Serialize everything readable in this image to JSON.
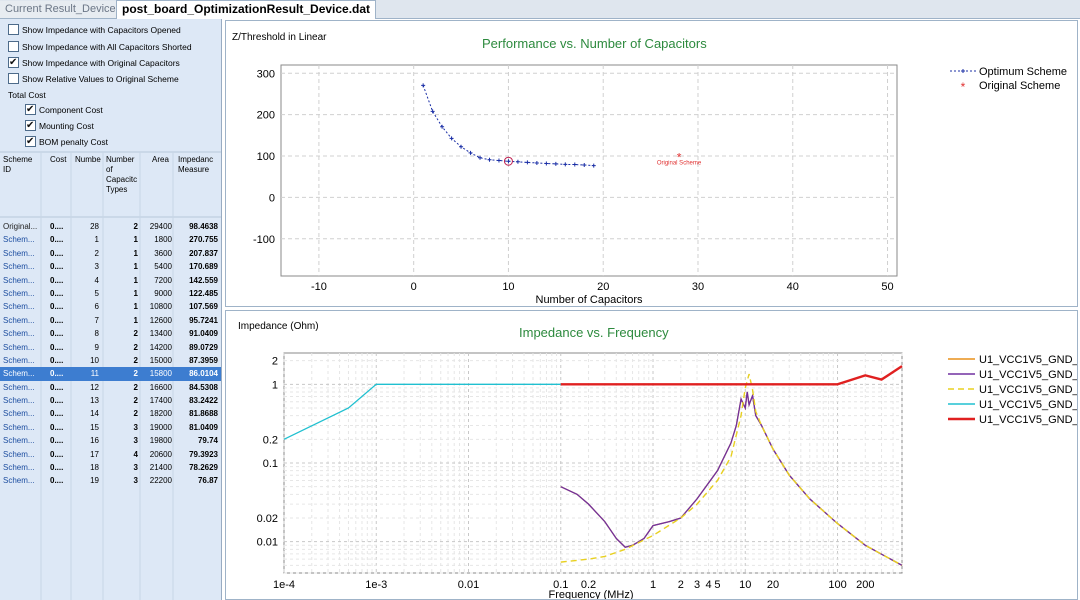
{
  "tabs": [
    {
      "label": "Current Result_Device",
      "active": false
    },
    {
      "label": "post_board_OptimizationResult_Device.dat",
      "active": true
    }
  ],
  "options": [
    {
      "label": "Show Impedance with Capacitors Opened",
      "checked": false
    },
    {
      "label": "Show Impedance with All Capacitors Shorted",
      "checked": false
    },
    {
      "label": "Show Impedance with Original Capacitors",
      "checked": true
    },
    {
      "label": "Show Relative Values to Original Scheme",
      "checked": false
    }
  ],
  "total_cost": {
    "label": "Total Cost",
    "items": [
      {
        "label": "Component Cost",
        "checked": true
      },
      {
        "label": "Mounting Cost",
        "checked": true
      },
      {
        "label": "BOM penalty Cost",
        "checked": true
      }
    ]
  },
  "table": {
    "headers": [
      "Scheme ID",
      "Cost",
      "Numbe",
      "Number of Capacitc Types",
      "Area",
      "Impedanc Measure"
    ],
    "selected_index": 11,
    "rows": [
      {
        "id": "Original...",
        "cost": "0....",
        "num": "28",
        "types": "2",
        "area": "29400",
        "imp": "98.4638"
      },
      {
        "id": "Schem...",
        "cost": "0....",
        "num": "1",
        "types": "1",
        "area": "1800",
        "imp": "270.755"
      },
      {
        "id": "Schem...",
        "cost": "0....",
        "num": "2",
        "types": "1",
        "area": "3600",
        "imp": "207.837"
      },
      {
        "id": "Schem...",
        "cost": "0....",
        "num": "3",
        "types": "1",
        "area": "5400",
        "imp": "170.689"
      },
      {
        "id": "Schem...",
        "cost": "0....",
        "num": "4",
        "types": "1",
        "area": "7200",
        "imp": "142.559"
      },
      {
        "id": "Schem...",
        "cost": "0....",
        "num": "5",
        "types": "1",
        "area": "9000",
        "imp": "122.485"
      },
      {
        "id": "Schem...",
        "cost": "0....",
        "num": "6",
        "types": "1",
        "area": "10800",
        "imp": "107.569"
      },
      {
        "id": "Schem...",
        "cost": "0....",
        "num": "7",
        "types": "1",
        "area": "12600",
        "imp": "95.7241"
      },
      {
        "id": "Schem...",
        "cost": "0....",
        "num": "8",
        "types": "2",
        "area": "13400",
        "imp": "91.0409"
      },
      {
        "id": "Schem...",
        "cost": "0....",
        "num": "9",
        "types": "2",
        "area": "14200",
        "imp": "89.0729"
      },
      {
        "id": "Schem...",
        "cost": "0....",
        "num": "10",
        "types": "2",
        "area": "15000",
        "imp": "87.3959"
      },
      {
        "id": "Schem...",
        "cost": "0....",
        "num": "11",
        "types": "2",
        "area": "15800",
        "imp": "86.0104"
      },
      {
        "id": "Schem...",
        "cost": "0....",
        "num": "12",
        "types": "2",
        "area": "16600",
        "imp": "84.5308"
      },
      {
        "id": "Schem...",
        "cost": "0....",
        "num": "13",
        "types": "2",
        "area": "17400",
        "imp": "83.2422"
      },
      {
        "id": "Schem...",
        "cost": "0....",
        "num": "14",
        "types": "2",
        "area": "18200",
        "imp": "81.8688"
      },
      {
        "id": "Schem...",
        "cost": "0....",
        "num": "15",
        "types": "3",
        "area": "19000",
        "imp": "81.0409"
      },
      {
        "id": "Schem...",
        "cost": "0....",
        "num": "16",
        "types": "3",
        "area": "19800",
        "imp": "79.74"
      },
      {
        "id": "Schem...",
        "cost": "0....",
        "num": "17",
        "types": "4",
        "area": "20600",
        "imp": "79.3923"
      },
      {
        "id": "Schem...",
        "cost": "0....",
        "num": "18",
        "types": "3",
        "area": "21400",
        "imp": "78.2629"
      },
      {
        "id": "Schem...",
        "cost": "0....",
        "num": "19",
        "types": "3",
        "area": "22200",
        "imp": "76.87"
      }
    ]
  },
  "chart_data": [
    {
      "type": "scatter",
      "title": "Performance vs. Number of Capacitors",
      "ylabel": "Z/Threshold in Linear",
      "xlabel": "Number of Capacitors",
      "xlim": [
        -14,
        51
      ],
      "ylim": [
        -190,
        320
      ],
      "xticks": [
        -10,
        0,
        10,
        20,
        30,
        40,
        50
      ],
      "yticks": [
        300,
        200,
        100,
        0,
        -100
      ],
      "grid": true,
      "legend_position": "right",
      "series": [
        {
          "name": "Optimum Scheme",
          "color": "#1b2fa6",
          "x": [
            1,
            2,
            3,
            4,
            5,
            6,
            7,
            8,
            9,
            10,
            11,
            12,
            13,
            14,
            15,
            16,
            17,
            18,
            19
          ],
          "y": [
            270.755,
            207.837,
            170.689,
            142.559,
            122.485,
            107.569,
            95.7241,
            91.0409,
            89.0729,
            87.3959,
            86.0104,
            84.5308,
            83.2422,
            81.8688,
            81.0409,
            79.74,
            79.3923,
            78.2629,
            76.87
          ]
        },
        {
          "name": "Original Scheme",
          "color": "#e03030",
          "x": [
            28
          ],
          "y": [
            98.4638
          ]
        }
      ],
      "annotations": [
        {
          "text": "Original Scheme",
          "x": 28,
          "y": 98.4638,
          "color": "#e03030"
        }
      ],
      "highlight": {
        "x": 10,
        "y": 87.3959
      }
    },
    {
      "type": "line",
      "title": "Impedance vs. Frequency",
      "ylabel": "Impedance (Ohm)",
      "xlabel": "Frequency (MHz)",
      "x_scale": "log",
      "y_scale": "log",
      "xlim": [
        0.0001,
        500
      ],
      "ylim": [
        0.004,
        2.5
      ],
      "xticks": [
        {
          "v": 0.0001,
          "label": "1e-4"
        },
        {
          "v": 0.001,
          "label": "1e-3"
        },
        {
          "v": 0.01,
          "label": "0.01"
        },
        {
          "v": 0.1,
          "label": "0.1"
        },
        {
          "v": 0.2,
          "label": "0.2"
        },
        {
          "v": 1,
          "label": "1"
        },
        {
          "v": 2,
          "label": "2"
        },
        {
          "v": 3,
          "label": "3"
        },
        {
          "v": 4,
          "label": "4"
        },
        {
          "v": 5,
          "label": "5"
        },
        {
          "v": 10,
          "label": "10"
        },
        {
          "v": 20,
          "label": "20"
        },
        {
          "v": 100,
          "label": "100"
        },
        {
          "v": 200,
          "label": "200"
        }
      ],
      "yticks": [
        {
          "v": 2,
          "label": "2"
        },
        {
          "v": 1,
          "label": "1"
        },
        {
          "v": 0.2,
          "label": "0.2"
        },
        {
          "v": 0.1,
          "label": "0.1"
        },
        {
          "v": 0.02,
          "label": "0.02"
        },
        {
          "v": 0.01,
          "label": "0.01"
        }
      ],
      "grid": true,
      "legend_position": "right",
      "series": [
        {
          "name": "U1_VCC1V5_GND_",
          "color": "#e8901a",
          "dash": "",
          "x": [
            0.1,
            0.15,
            0.2,
            0.3,
            0.4,
            0.5,
            0.6,
            0.8,
            1,
            1.5,
            2,
            3,
            5,
            7,
            8,
            9,
            10,
            10.5,
            11,
            12,
            13,
            15,
            20,
            30,
            50,
            100,
            200,
            500
          ],
          "y": [
            0.05,
            0.04,
            0.03,
            0.018,
            0.011,
            0.0085,
            0.009,
            0.011,
            0.016,
            0.018,
            0.02,
            0.035,
            0.08,
            0.18,
            0.3,
            0.65,
            0.5,
            0.8,
            0.55,
            0.72,
            0.4,
            0.3,
            0.15,
            0.07,
            0.035,
            0.017,
            0.009,
            0.005
          ]
        },
        {
          "name": "U1_VCC1V5_GND_",
          "color": "#7030a0",
          "dash": "",
          "x": [
            0.1,
            0.15,
            0.2,
            0.3,
            0.4,
            0.5,
            0.6,
            0.8,
            1,
            1.5,
            2,
            3,
            5,
            7,
            8,
            9,
            10,
            10.5,
            11,
            12,
            13,
            15,
            20,
            30,
            50,
            100,
            200,
            500
          ],
          "y": [
            0.05,
            0.04,
            0.03,
            0.018,
            0.011,
            0.0085,
            0.009,
            0.011,
            0.016,
            0.018,
            0.02,
            0.035,
            0.08,
            0.18,
            0.3,
            0.65,
            0.5,
            0.8,
            0.55,
            0.72,
            0.4,
            0.3,
            0.15,
            0.07,
            0.035,
            0.017,
            0.009,
            0.005
          ]
        },
        {
          "name": "U1_VCC1V5_GND_",
          "color": "#e8d020",
          "dash": "6,4",
          "x": [
            0.1,
            0.2,
            0.3,
            0.5,
            1,
            2,
            3,
            5,
            7,
            9,
            10,
            11,
            12,
            13,
            15,
            20,
            30,
            50,
            100,
            200,
            500
          ],
          "y": [
            0.0055,
            0.006,
            0.0065,
            0.008,
            0.012,
            0.02,
            0.03,
            0.06,
            0.12,
            0.4,
            0.9,
            1.35,
            0.85,
            0.45,
            0.3,
            0.15,
            0.07,
            0.035,
            0.017,
            0.009,
            0.005
          ]
        },
        {
          "name": "U1_VCC1V5_GND_",
          "color": "#20c0d0",
          "dash": "",
          "x": [
            0.0001,
            0.0005,
            0.001,
            0.01,
            0.1
          ],
          "y": [
            0.2,
            0.5,
            1,
            1,
            1
          ]
        },
        {
          "name": "U1_VCC1V5_GND_",
          "color": "#e02020",
          "dash": "",
          "x": [
            0.1,
            1,
            10,
            100,
            200,
            300,
            500
          ],
          "y": [
            1,
            1,
            1,
            1,
            1.3,
            1.15,
            1.7
          ]
        }
      ]
    }
  ]
}
